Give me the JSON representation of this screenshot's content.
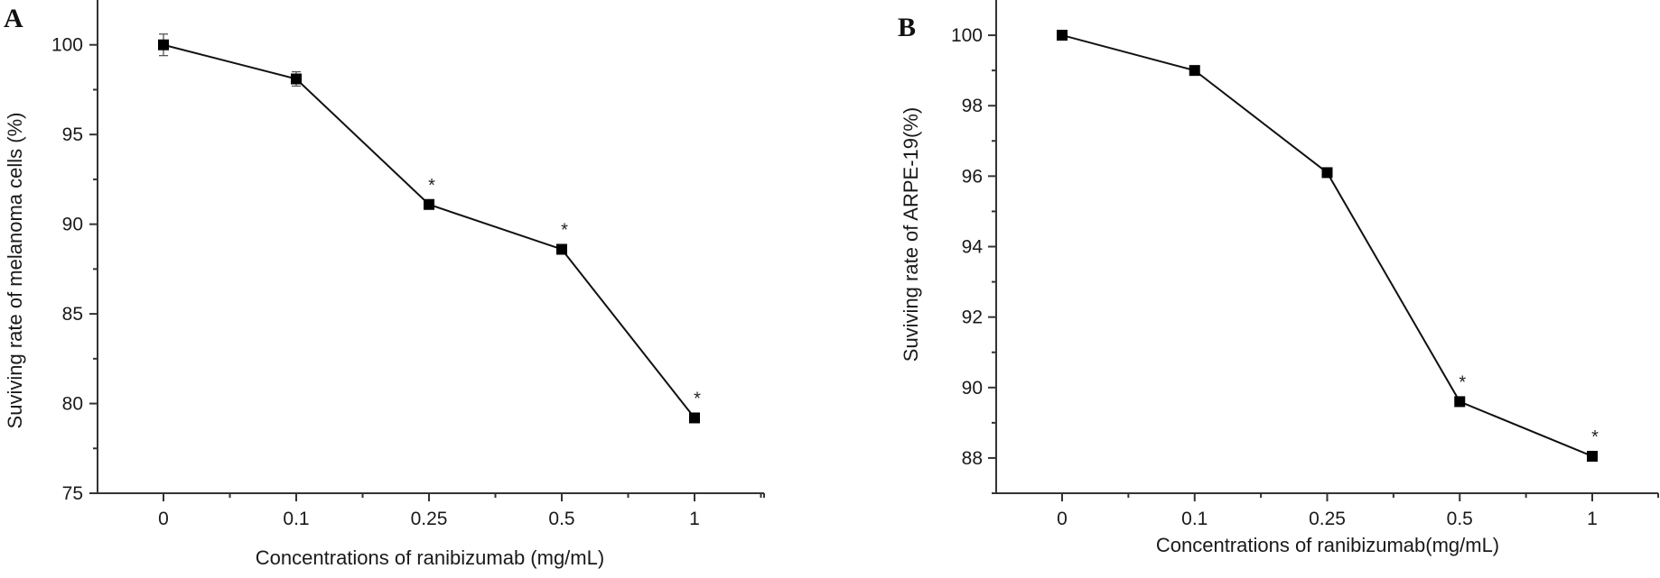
{
  "chart_data": [
    {
      "type": "line",
      "panel_label": "A",
      "title": "",
      "xlabel": "Concentrations of ranibizumab (mg/mL)",
      "ylabel": "Suviving rate of melanoma cells (%)",
      "categories": [
        "0",
        "0.1",
        "0.25",
        "0.5",
        "1"
      ],
      "x_scale": "categorical",
      "ylim": [
        75,
        102.5
      ],
      "yticks": [
        75,
        80,
        85,
        90,
        95,
        100
      ],
      "ytick_labels": [
        "75",
        "80",
        "85",
        "90",
        "95",
        "100"
      ],
      "y_minor_step": 2.5,
      "grid": false,
      "legend": "none",
      "series": [
        {
          "name": "melanoma cells",
          "marker": "square",
          "values": [
            100.0,
            98.1,
            91.1,
            88.6,
            79.2
          ],
          "error": [
            0.6,
            0.4,
            0,
            0,
            0
          ],
          "significance": [
            "",
            "",
            "*",
            "*",
            "*"
          ]
        }
      ]
    },
    {
      "type": "line",
      "panel_label": "B",
      "title": "",
      "xlabel": "Concentrations of ranibizumab(mg/mL)",
      "ylabel": "Suviving rate of  ARPE-19(%)",
      "categories": [
        "0",
        "0.1",
        "0.25",
        "0.5",
        "1"
      ],
      "x_scale": "categorical",
      "ylim": [
        87,
        101
      ],
      "yticks": [
        88,
        90,
        92,
        94,
        96,
        98,
        100
      ],
      "ytick_labels": [
        "88",
        "90",
        "92",
        "94",
        "96",
        "98",
        "100"
      ],
      "y_minor_step": 1,
      "grid": false,
      "legend": "none",
      "series": [
        {
          "name": "ARPE-19",
          "marker": "square",
          "values": [
            100.0,
            99.0,
            96.1,
            89.6,
            88.05
          ],
          "error": [
            0,
            0,
            0,
            0,
            0
          ],
          "significance": [
            "",
            "",
            "",
            "*",
            "*"
          ]
        }
      ]
    }
  ]
}
